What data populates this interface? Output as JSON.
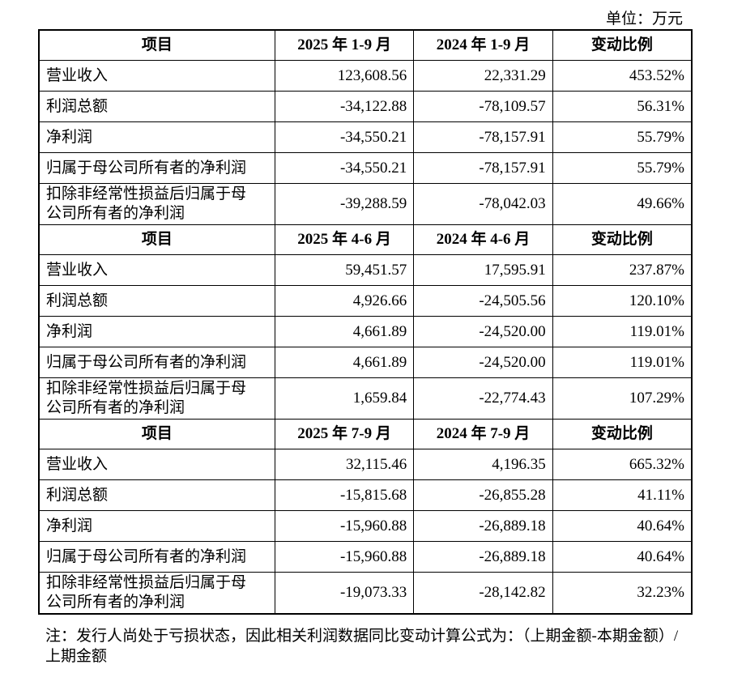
{
  "unit": "单位：万元",
  "sections": [
    {
      "header": [
        "项目",
        "2025 年 1-9 月",
        "2024 年 1-9 月",
        "变动比例"
      ],
      "rows": [
        [
          "营业收入",
          "123,608.56",
          "22,331.29",
          "453.52%"
        ],
        [
          "利润总额",
          "-34,122.88",
          "-78,109.57",
          "56.31%"
        ],
        [
          "净利润",
          "-34,550.21",
          "-78,157.91",
          "55.79%"
        ],
        [
          "归属于母公司所有者的净利润",
          "-34,550.21",
          "-78,157.91",
          "55.79%"
        ],
        [
          "扣除非经常性损益后归属于母公司所有者的净利润",
          "-39,288.59",
          "-78,042.03",
          "49.66%"
        ]
      ]
    },
    {
      "header": [
        "项目",
        "2025 年 4-6 月",
        "2024 年 4-6 月",
        "变动比例"
      ],
      "rows": [
        [
          "营业收入",
          "59,451.57",
          "17,595.91",
          "237.87%"
        ],
        [
          "利润总额",
          "4,926.66",
          "-24,505.56",
          "120.10%"
        ],
        [
          "净利润",
          "4,661.89",
          "-24,520.00",
          "119.01%"
        ],
        [
          "归属于母公司所有者的净利润",
          "4,661.89",
          "-24,520.00",
          "119.01%"
        ],
        [
          "扣除非经常性损益后归属于母公司所有者的净利润",
          "1,659.84",
          "-22,774.43",
          "107.29%"
        ]
      ]
    },
    {
      "header": [
        "项目",
        "2025 年 7-9 月",
        "2024 年 7-9 月",
        "变动比例"
      ],
      "rows": [
        [
          "营业收入",
          "32,115.46",
          "4,196.35",
          "665.32%"
        ],
        [
          "利润总额",
          "-15,815.68",
          "-26,855.28",
          "41.11%"
        ],
        [
          "净利润",
          "-15,960.88",
          "-26,889.18",
          "40.64%"
        ],
        [
          "归属于母公司所有者的净利润",
          "-15,960.88",
          "-26,889.18",
          "40.64%"
        ],
        [
          "扣除非经常性损益后归属于母公司所有者的净利润",
          "-19,073.33",
          "-28,142.82",
          "32.23%"
        ]
      ]
    }
  ],
  "note": "注：发行人尚处于亏损状态，因此相关利润数据同比变动计算公式为：（上期金额-本期金额）/上期金额"
}
